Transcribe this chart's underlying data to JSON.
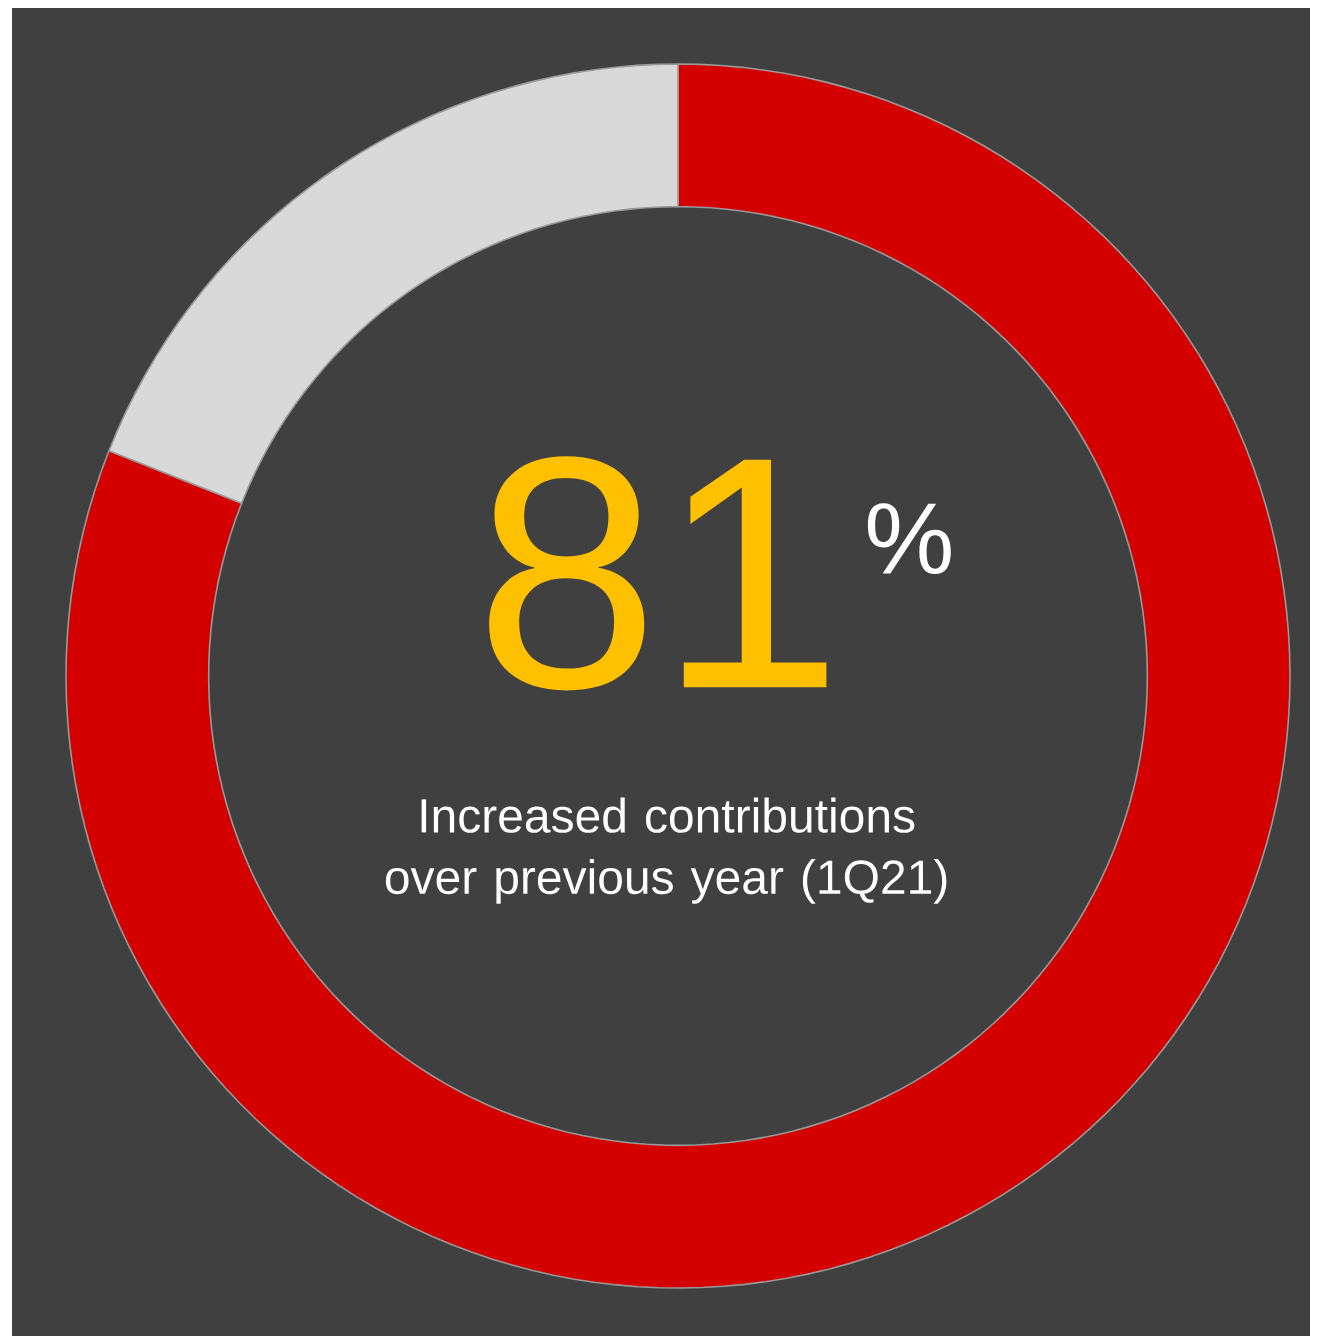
{
  "chart_data": {
    "type": "donut",
    "categories": [
      null,
      null
    ],
    "values": [
      81,
      19
    ],
    "colors": [
      "#d40000",
      "#d9d9d9"
    ],
    "annotations": [
      "81",
      "%",
      "Increased contributions over previous year (1Q21)"
    ]
  }
}
